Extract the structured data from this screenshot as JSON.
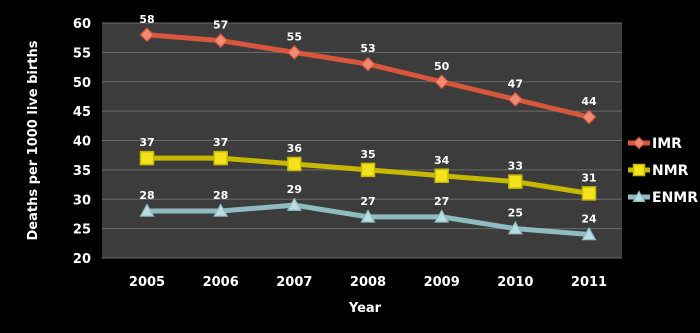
{
  "chart_data": {
    "type": "line",
    "title": "",
    "xlabel": "Year",
    "ylabel": "Deaths per 1000 live births",
    "ylim": [
      20,
      60
    ],
    "yticks": [
      20,
      25,
      30,
      35,
      40,
      45,
      50,
      55,
      60
    ],
    "categories": [
      "2005",
      "2006",
      "2007",
      "2008",
      "2009",
      "2010",
      "2011"
    ],
    "grid": true,
    "legend_position": "right",
    "plot_background": "#3c3c3c",
    "series": [
      {
        "name": "IMR",
        "values": [
          58,
          57,
          55,
          53,
          50,
          47,
          44
        ],
        "color": "#d8573c",
        "marker": "diamond",
        "marker_fill": "#f08a72"
      },
      {
        "name": "NMR",
        "values": [
          37,
          37,
          36,
          35,
          34,
          33,
          31
        ],
        "color": "#c9b800",
        "marker": "square",
        "marker_fill": "#f2e31c"
      },
      {
        "name": "ENMR",
        "values": [
          28,
          28,
          29,
          27,
          27,
          25,
          24
        ],
        "color": "#8fbcc0",
        "marker": "triangle",
        "marker_fill": "#b9dde0"
      }
    ]
  }
}
